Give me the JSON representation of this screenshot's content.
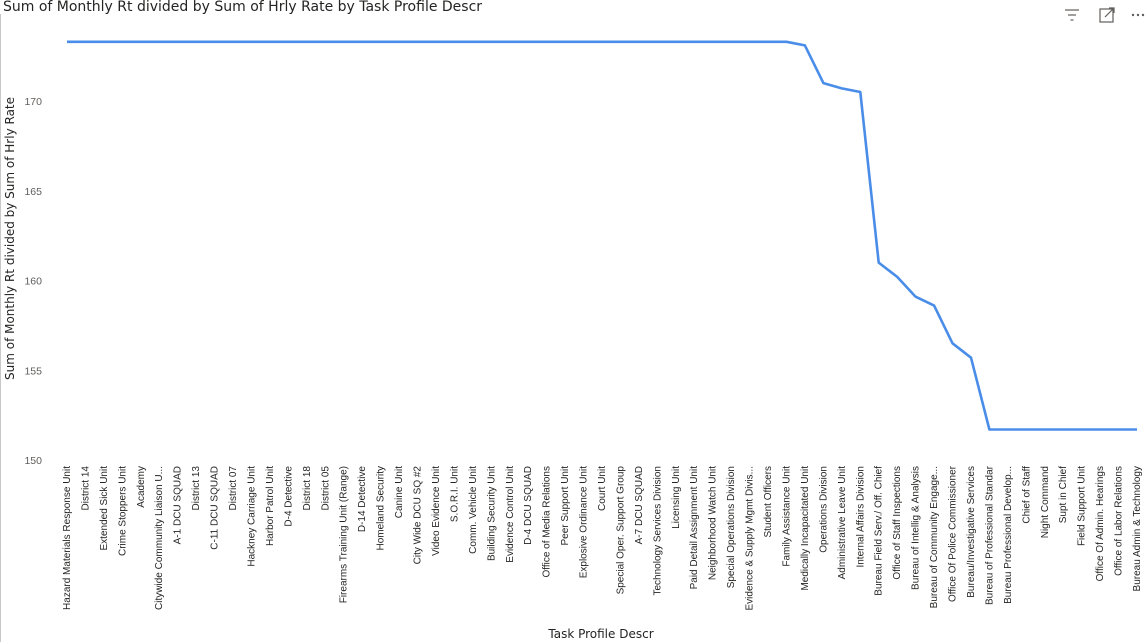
{
  "title": "Sum of Monthly Rt divided by Sum of Hrly Rate by Task Profile Descr",
  "toolbar": {
    "filter_icon": "filter-lines-icon",
    "focus_icon": "focus-mode-icon",
    "more_icon": "more-options-icon"
  },
  "colors": {
    "line": "#4a8de8",
    "text": "#252423",
    "axis_text": "#605e5c",
    "gridline": "#e6e6e6"
  },
  "chart_data": {
    "type": "line",
    "xlabel": "Task Profile Descr",
    "ylabel": "Sum of Monthly Rt divided by Sum of Hrly Rate",
    "ylim": [
      150,
      173.5
    ],
    "yticks": [
      150,
      155,
      160,
      165,
      170
    ],
    "grid": false,
    "categories": [
      "Hazard Materials Response Unit",
      "District 14",
      "Extended Sick Unit",
      "Crime Stoppers Unit",
      "Academy",
      "Citywide Community Liaison U...",
      "A-1 DCU SQUAD",
      "District 13",
      "C-11 DCU SQUAD",
      "District 07",
      "Hackney Carriage Unit",
      "Harbor Patrol Unit",
      "D-4 Detective",
      "District 18",
      "District 05",
      "Firearms Training Unit (Range)",
      "D-14 Detective",
      "Homeland Security",
      "Canine Unit",
      "City Wide DCU SQ #2",
      "Video Evidence Unit",
      "S.O.R.I. Unit",
      "Comm. Vehicle Unit",
      "Building Security Unit",
      "Evidence Control Unit",
      "D-4 DCU SQUAD",
      "Office of Media Relations",
      "Peer Support Unit",
      "Explosive Ordinance Unit",
      "Court Unit",
      "Special Oper. Support Group",
      "A-7 DCU SQUAD",
      "Technology Services Division",
      "Licensing Unit",
      "Paid Detail Assignment Unit",
      "Neighborhood Watch Unit",
      "Special Operations Division",
      "Evidence & Supply Mgmt Divis...",
      "Student Officers",
      "Family Assistance Unit",
      "Medically Incapacitated Unit",
      "Operations Division",
      "Administrative Leave Unit",
      "Internal Affairs Division",
      "Bureau Field Serv./ Off. Chief",
      "Office of Staff Inspections",
      "Bureau of Intellig & Analysis",
      "Bureau of Community Engage...",
      "Office Of Police Commissioner",
      "Bureau/Investigative Services",
      "Bureau of Professional Standar",
      "Bureau Professional Develop...",
      "Chief of Staff",
      "Night Command",
      "Supt in Chief",
      "Field Support Unit",
      "Office Of Admin. Hearings",
      "Office of Labor Relations",
      "Bureau Admin & Technology"
    ],
    "series": [
      {
        "values": [
          173.3,
          173.3,
          173.3,
          173.3,
          173.3,
          173.3,
          173.3,
          173.3,
          173.3,
          173.3,
          173.3,
          173.3,
          173.3,
          173.3,
          173.3,
          173.3,
          173.3,
          173.3,
          173.3,
          173.3,
          173.3,
          173.3,
          173.3,
          173.3,
          173.3,
          173.3,
          173.3,
          173.3,
          173.3,
          173.3,
          173.3,
          173.3,
          173.3,
          173.3,
          173.3,
          173.3,
          173.3,
          173.3,
          173.3,
          173.3,
          173.1,
          171.0,
          170.7,
          170.5,
          161.0,
          160.2,
          159.1,
          158.6,
          156.5,
          155.7,
          151.7,
          151.7,
          151.7,
          151.7,
          151.7,
          151.7,
          151.7,
          151.7,
          151.7
        ]
      }
    ]
  }
}
